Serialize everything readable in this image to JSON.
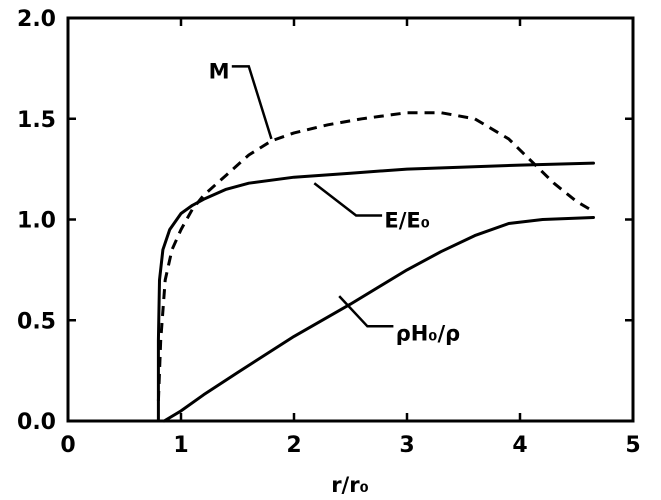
{
  "chart_data": {
    "type": "line",
    "xlabel": "r/r₀",
    "ylabel": "",
    "xlim": [
      0,
      5
    ],
    "ylim": [
      0,
      2
    ],
    "x_ticks": [
      "0",
      "1",
      "2",
      "3",
      "4",
      "5"
    ],
    "y_ticks": [
      "0.0",
      "0.5",
      "1.0",
      "1.5",
      "2.0"
    ],
    "grid": false,
    "series": [
      {
        "name": "M",
        "style": "dashed",
        "points": [
          [
            0.8,
            0.1
          ],
          [
            0.82,
            0.4
          ],
          [
            0.86,
            0.7
          ],
          [
            0.92,
            0.85
          ],
          [
            1.0,
            0.95
          ],
          [
            1.1,
            1.05
          ],
          [
            1.2,
            1.12
          ],
          [
            1.4,
            1.22
          ],
          [
            1.6,
            1.32
          ],
          [
            1.8,
            1.39
          ],
          [
            2.0,
            1.43
          ],
          [
            2.3,
            1.47
          ],
          [
            2.6,
            1.5
          ],
          [
            3.0,
            1.53
          ],
          [
            3.3,
            1.53
          ],
          [
            3.6,
            1.5
          ],
          [
            3.9,
            1.4
          ],
          [
            4.1,
            1.29
          ],
          [
            4.3,
            1.18
          ],
          [
            4.5,
            1.09
          ],
          [
            4.65,
            1.04
          ]
        ]
      },
      {
        "name": "E/E₀",
        "style": "solid",
        "points": [
          [
            0.8,
            0.0
          ],
          [
            0.8,
            0.4
          ],
          [
            0.81,
            0.7
          ],
          [
            0.84,
            0.85
          ],
          [
            0.9,
            0.95
          ],
          [
            1.0,
            1.03
          ],
          [
            1.1,
            1.07
          ],
          [
            1.2,
            1.1
          ],
          [
            1.4,
            1.15
          ],
          [
            1.6,
            1.18
          ],
          [
            2.0,
            1.21
          ],
          [
            2.5,
            1.23
          ],
          [
            3.0,
            1.25
          ],
          [
            3.5,
            1.26
          ],
          [
            4.0,
            1.27
          ],
          [
            4.65,
            1.28
          ]
        ]
      },
      {
        "name": "ρH₀/ρ",
        "style": "solid",
        "points": [
          [
            0.85,
            0.0
          ],
          [
            1.0,
            0.05
          ],
          [
            1.2,
            0.13
          ],
          [
            1.5,
            0.24
          ],
          [
            2.0,
            0.42
          ],
          [
            2.5,
            0.58
          ],
          [
            3.0,
            0.75
          ],
          [
            3.3,
            0.84
          ],
          [
            3.6,
            0.92
          ],
          [
            3.9,
            0.98
          ],
          [
            4.2,
            1.0
          ],
          [
            4.65,
            1.01
          ]
        ]
      }
    ],
    "annotations": [
      {
        "text": "M",
        "series": "M"
      },
      {
        "text": "E/E₀",
        "series": "E/E₀"
      },
      {
        "text": "ρH₀/ρ",
        "series": "ρH₀/ρ"
      }
    ]
  }
}
